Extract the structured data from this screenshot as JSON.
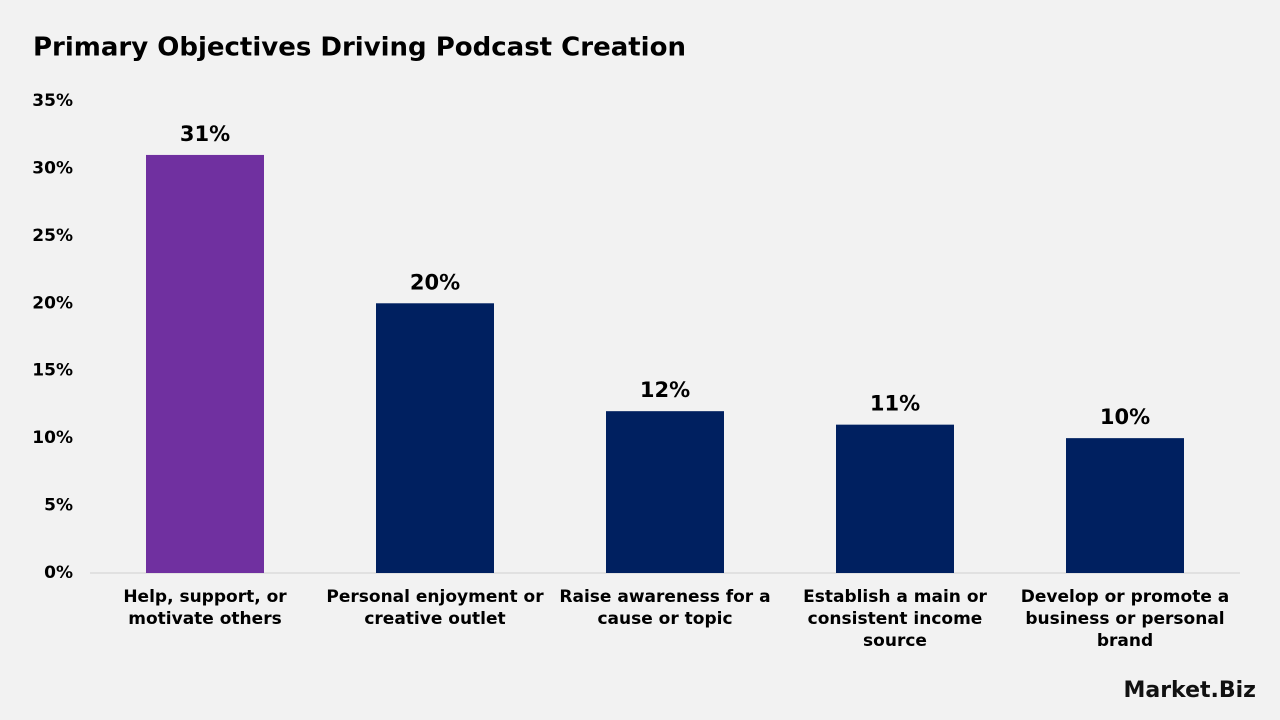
{
  "chart_data": {
    "type": "bar",
    "title": "Primary Objectives Driving Podcast Creation",
    "categories": [
      "Help, support, or motivate others",
      "Personal enjoyment or creative outlet",
      "Raise awareness for a cause or topic",
      "Establish a main or consistent income source",
      "Develop or promote a business or personal brand"
    ],
    "values": [
      31,
      20,
      12,
      11,
      10
    ],
    "value_labels": [
      "31%",
      "20%",
      "12%",
      "11%",
      "10%"
    ],
    "colors": [
      "#7030a0",
      "#002060",
      "#002060",
      "#002060",
      "#002060"
    ],
    "ylim": [
      0,
      35
    ],
    "yticks": [
      {
        "value": 0,
        "label": "0%"
      },
      {
        "value": 5,
        "label": "5%"
      },
      {
        "value": 10,
        "label": "10%"
      },
      {
        "value": 15,
        "label": "15%"
      },
      {
        "value": 20,
        "label": "20%"
      },
      {
        "value": 25,
        "label": "25%"
      },
      {
        "value": 30,
        "label": "30%"
      },
      {
        "value": 35,
        "label": "35%"
      }
    ],
    "grid": false
  },
  "logo": "Market.Biz"
}
